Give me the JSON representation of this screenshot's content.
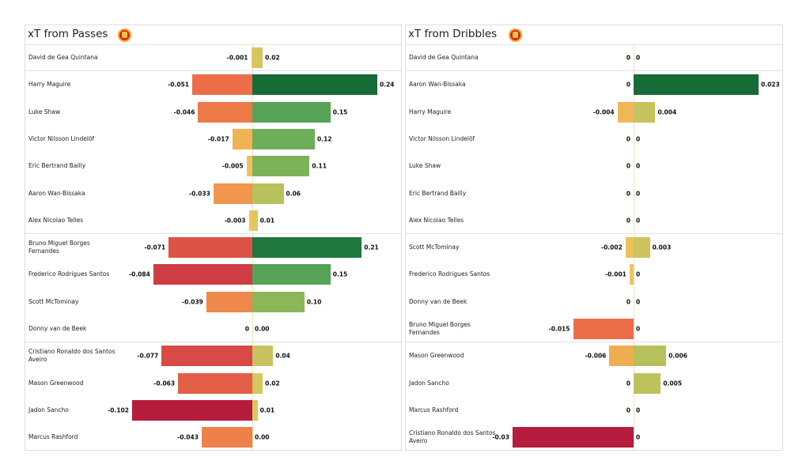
{
  "palette": {
    "neg": [
      "#eec860",
      "#f2a64f",
      "#ec6e48",
      "#d84b45",
      "#b51c3d"
    ],
    "pos": [
      "#e4c95e",
      "#c8c35e",
      "#a8bf5a",
      "#6eae58",
      "#4e9e55",
      "#237a41",
      "#166b37"
    ]
  },
  "chart_data": [
    {
      "type": "bar",
      "title": "xT from Passes",
      "orientation": "horizontal diverging",
      "groups_after_rows": [
        0,
        6,
        10
      ],
      "rows": [
        {
          "name": "David de Gea Quintana",
          "neg": -0.001,
          "pos": 0.02,
          "neg_label": "-0.001",
          "pos_label": "0.02"
        },
        {
          "name": "Harry  Maguire",
          "neg": -0.051,
          "pos": 0.24,
          "neg_label": "-0.051",
          "pos_label": "0.24"
        },
        {
          "name": "Luke Shaw",
          "neg": -0.046,
          "pos": 0.15,
          "neg_label": "-0.046",
          "pos_label": "0.15"
        },
        {
          "name": "Victor Nilsson Lindelöf",
          "neg": -0.017,
          "pos": 0.12,
          "neg_label": "-0.017",
          "pos_label": "0.12"
        },
        {
          "name": "Eric Bertrand  Bailly",
          "neg": -0.005,
          "pos": 0.11,
          "neg_label": "-0.005",
          "pos_label": "0.11"
        },
        {
          "name": "Aaron Wan-Bissaka",
          "neg": -0.033,
          "pos": 0.06,
          "neg_label": "-0.033",
          "pos_label": "0.06"
        },
        {
          "name": "Alex Nicolao Telles",
          "neg": -0.003,
          "pos": 0.01,
          "neg_label": "-0.003",
          "pos_label": "0.01"
        },
        {
          "name": "Bruno Miguel Borges Fernandes",
          "neg": -0.071,
          "pos": 0.21,
          "neg_label": "-0.071",
          "pos_label": "0.21"
        },
        {
          "name": "Frederico Rodrigues Santos",
          "neg": -0.084,
          "pos": 0.15,
          "neg_label": "-0.084",
          "pos_label": "0.15"
        },
        {
          "name": "Scott McTominay",
          "neg": -0.039,
          "pos": 0.1,
          "neg_label": "-0.039",
          "pos_label": "0.10"
        },
        {
          "name": "Donny van de Beek",
          "neg": 0,
          "pos": 0,
          "neg_label": "0",
          "pos_label": "0.00"
        },
        {
          "name": "Cristiano Ronaldo dos Santos Aveiro",
          "neg": -0.077,
          "pos": 0.04,
          "neg_label": "-0.077",
          "pos_label": "0.04"
        },
        {
          "name": "Mason Greenwood",
          "neg": -0.063,
          "pos": 0.02,
          "neg_label": "-0.063",
          "pos_label": "0.02"
        },
        {
          "name": "Jadon Sancho",
          "neg": -0.102,
          "pos": 0.01,
          "neg_label": "-0.102",
          "pos_label": "0.01"
        },
        {
          "name": "Marcus Rashford",
          "neg": -0.043,
          "pos": 0.0,
          "neg_label": "-0.043",
          "pos_label": "0.00"
        }
      ]
    },
    {
      "type": "bar",
      "title": "xT from Dribbles",
      "orientation": "horizontal diverging",
      "groups_after_rows": [
        0,
        6,
        10
      ],
      "rows": [
        {
          "name": "David de Gea Quintana",
          "neg": 0,
          "pos": 0,
          "neg_label": "0",
          "pos_label": "0"
        },
        {
          "name": "Aaron Wan-Bissaka",
          "neg": 0,
          "pos": 0.023,
          "neg_label": "0",
          "pos_label": "0.023"
        },
        {
          "name": "Harry  Maguire",
          "neg": -0.004,
          "pos": 0.004,
          "neg_label": "-0.004",
          "pos_label": "0.004"
        },
        {
          "name": "Victor Nilsson Lindelöf",
          "neg": 0,
          "pos": 0,
          "neg_label": "0",
          "pos_label": "0"
        },
        {
          "name": "Luke Shaw",
          "neg": 0,
          "pos": 0,
          "neg_label": "0",
          "pos_label": "0"
        },
        {
          "name": "Eric Bertrand  Bailly",
          "neg": 0,
          "pos": 0,
          "neg_label": "0",
          "pos_label": "0"
        },
        {
          "name": "Alex Nicolao Telles",
          "neg": 0,
          "pos": 0,
          "neg_label": "0",
          "pos_label": "0"
        },
        {
          "name": "Scott McTominay",
          "neg": -0.002,
          "pos": 0.003,
          "neg_label": "-0.002",
          "pos_label": "0.003"
        },
        {
          "name": "Frederico Rodrigues Santos",
          "neg": -0.001,
          "pos": 0,
          "neg_label": "-0.001",
          "pos_label": "0"
        },
        {
          "name": "Donny van de Beek",
          "neg": 0,
          "pos": 0,
          "neg_label": "0",
          "pos_label": "0"
        },
        {
          "name": "Bruno Miguel Borges Fernandes",
          "neg": -0.015,
          "pos": 0,
          "neg_label": "-0.015",
          "pos_label": "0"
        },
        {
          "name": "Mason Greenwood",
          "neg": -0.006,
          "pos": 0.006,
          "neg_label": "-0.006",
          "pos_label": "0.006"
        },
        {
          "name": "Jadon Sancho",
          "neg": 0,
          "pos": 0.005,
          "neg_label": "0",
          "pos_label": "0.005"
        },
        {
          "name": "Marcus Rashford",
          "neg": 0,
          "pos": 0,
          "neg_label": "0",
          "pos_label": "0"
        },
        {
          "name": "Cristiano Ronaldo dos Santos Aveiro",
          "neg": -0.03,
          "pos": 0,
          "neg_label": "-0.03",
          "pos_label": "0"
        }
      ]
    }
  ]
}
